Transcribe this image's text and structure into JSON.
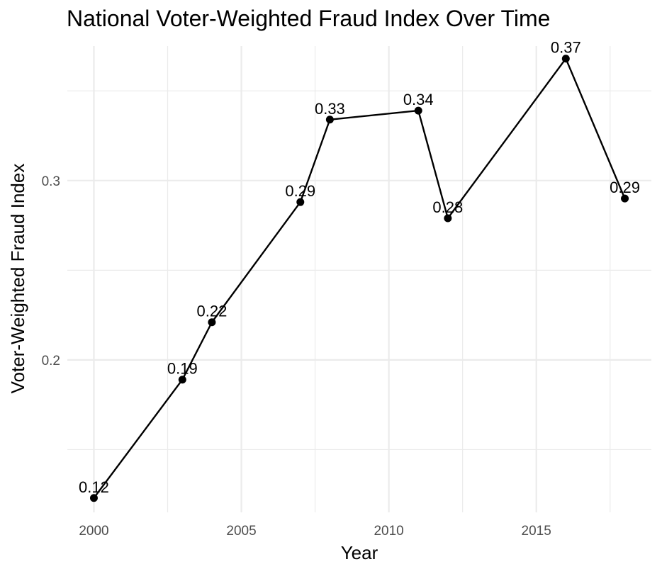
{
  "chart_data": {
    "type": "line",
    "title": "National Voter-Weighted Fraud Index Over Time",
    "xlabel": "Year",
    "ylabel": "Voter-Weighted Fraud Index",
    "x": [
      2000,
      2003,
      2004,
      2007,
      2008,
      2011,
      2012,
      2016,
      2018
    ],
    "series": [
      {
        "values": [
          0.123,
          0.189,
          0.221,
          0.288,
          0.334,
          0.339,
          0.279,
          0.368,
          0.29
        ],
        "labels": [
          "0.12",
          "0.19",
          "0.22",
          "0.29",
          "0.33",
          "0.34",
          "0.28",
          "0.37",
          "0.29"
        ]
      }
    ],
    "xlim": [
      1999.1,
      2018.9
    ],
    "ylim": [
      0.115,
      0.375
    ],
    "x_ticks": [
      {
        "value": 2000,
        "label": "2000"
      },
      {
        "value": 2005,
        "label": "2005"
      },
      {
        "value": 2010,
        "label": "2010"
      },
      {
        "value": 2015,
        "label": "2015"
      }
    ],
    "x_minor_ticks": [
      2002.5,
      2007.5,
      2012.5,
      2017.5
    ],
    "y_ticks": [
      {
        "value": 0.2,
        "label": "0.2"
      },
      {
        "value": 0.3,
        "label": "0.3"
      }
    ],
    "y_minor_ticks": [
      0.15,
      0.25,
      0.35
    ],
    "grid": true,
    "line_color": "#000000",
    "grid_color": "#ebebeb"
  }
}
